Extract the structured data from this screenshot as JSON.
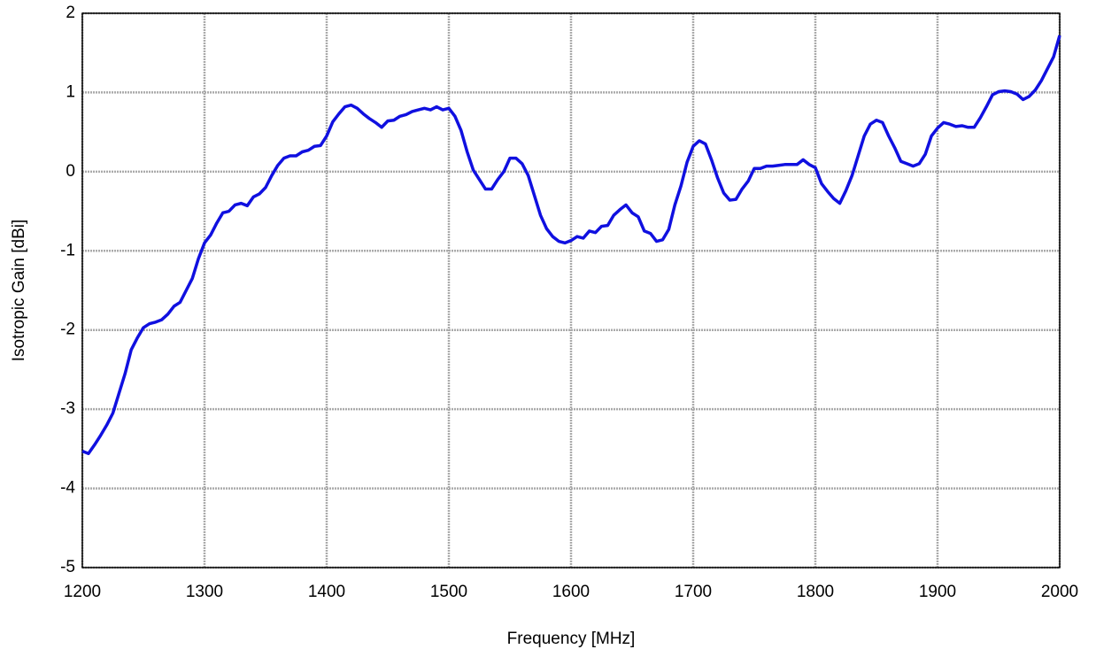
{
  "chart_data": {
    "type": "line",
    "xlabel": "Frequency [MHz]",
    "ylabel": "Isotropic Gain [dBi]",
    "xlim": [
      1200,
      2000
    ],
    "xticks": [
      1200,
      1300,
      1400,
      1500,
      1600,
      1700,
      1800,
      1900,
      2000
    ],
    "ylim": [
      -5,
      2
    ],
    "yticks": [
      -5,
      -4,
      -3,
      -2,
      -1,
      0,
      1,
      2
    ],
    "grid": true,
    "x": [
      1200,
      1205,
      1210,
      1215,
      1220,
      1225,
      1230,
      1235,
      1240,
      1245,
      1250,
      1255,
      1260,
      1265,
      1270,
      1275,
      1280,
      1285,
      1290,
      1295,
      1300,
      1305,
      1310,
      1315,
      1320,
      1325,
      1330,
      1335,
      1340,
      1345,
      1350,
      1355,
      1360,
      1365,
      1370,
      1375,
      1380,
      1385,
      1390,
      1395,
      1400,
      1405,
      1410,
      1415,
      1420,
      1425,
      1430,
      1435,
      1440,
      1445,
      1450,
      1455,
      1460,
      1465,
      1470,
      1475,
      1480,
      1485,
      1490,
      1495,
      1500,
      1505,
      1510,
      1515,
      1520,
      1525,
      1530,
      1535,
      1540,
      1545,
      1550,
      1555,
      1560,
      1565,
      1570,
      1575,
      1580,
      1585,
      1590,
      1595,
      1600,
      1605,
      1610,
      1615,
      1620,
      1625,
      1630,
      1635,
      1640,
      1645,
      1650,
      1655,
      1660,
      1665,
      1670,
      1675,
      1680,
      1685,
      1690,
      1695,
      1700,
      1705,
      1710,
      1715,
      1720,
      1725,
      1730,
      1735,
      1740,
      1745,
      1750,
      1755,
      1760,
      1765,
      1770,
      1775,
      1780,
      1785,
      1790,
      1795,
      1800,
      1805,
      1810,
      1815,
      1820,
      1825,
      1830,
      1835,
      1840,
      1845,
      1850,
      1855,
      1860,
      1865,
      1870,
      1875,
      1880,
      1885,
      1890,
      1895,
      1900,
      1905,
      1910,
      1915,
      1920,
      1925,
      1930,
      1935,
      1940,
      1945,
      1950,
      1955,
      1960,
      1965,
      1970,
      1975,
      1980,
      1985,
      1990,
      1995,
      2000
    ],
    "series": [
      {
        "name": "Gain",
        "color": "#1010e0",
        "values": [
          -3.53,
          -3.56,
          -3.45,
          -3.33,
          -3.2,
          -3.05,
          -2.8,
          -2.55,
          -2.25,
          -2.1,
          -1.97,
          -1.92,
          -1.9,
          -1.87,
          -1.8,
          -1.7,
          -1.65,
          -1.5,
          -1.35,
          -1.1,
          -0.9,
          -0.8,
          -0.65,
          -0.52,
          -0.5,
          -0.42,
          -0.4,
          -0.43,
          -0.32,
          -0.28,
          -0.2,
          -0.05,
          0.08,
          0.17,
          0.2,
          0.2,
          0.25,
          0.27,
          0.32,
          0.33,
          0.45,
          0.63,
          0.73,
          0.82,
          0.84,
          0.8,
          0.73,
          0.67,
          0.62,
          0.56,
          0.64,
          0.65,
          0.7,
          0.72,
          0.76,
          0.78,
          0.8,
          0.78,
          0.82,
          0.78,
          0.8,
          0.7,
          0.52,
          0.25,
          0.02,
          -0.1,
          -0.22,
          -0.22,
          -0.1,
          0.0,
          0.17,
          0.17,
          0.1,
          -0.05,
          -0.3,
          -0.55,
          -0.72,
          -0.82,
          -0.88,
          -0.9,
          -0.87,
          -0.82,
          -0.84,
          -0.75,
          -0.77,
          -0.69,
          -0.68,
          -0.55,
          -0.48,
          -0.42,
          -0.52,
          -0.57,
          -0.75,
          -0.78,
          -0.88,
          -0.86,
          -0.73,
          -0.42,
          -0.18,
          0.12,
          0.32,
          0.39,
          0.35,
          0.15,
          -0.08,
          -0.27,
          -0.36,
          -0.35,
          -0.22,
          -0.12,
          0.04,
          0.04,
          0.07,
          0.07,
          0.08,
          0.09,
          0.09,
          0.09,
          0.15,
          0.09,
          0.05,
          -0.15,
          -0.25,
          -0.34,
          -0.4,
          -0.24,
          -0.05,
          0.2,
          0.45,
          0.6,
          0.65,
          0.62,
          0.45,
          0.3,
          0.13,
          0.1,
          0.07,
          0.1,
          0.22,
          0.45,
          0.55,
          0.62,
          0.6,
          0.57,
          0.58,
          0.56,
          0.56,
          0.68,
          0.82,
          0.97,
          1.01,
          1.02,
          1.01,
          0.98,
          0.91,
          0.95,
          1.03,
          1.15,
          1.3,
          1.45,
          1.72
        ]
      }
    ]
  }
}
